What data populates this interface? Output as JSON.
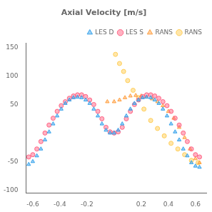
{
  "chart_data": {
    "type": "scatter",
    "title": "Axial Velocity [m/s]",
    "series": [
      {
        "name": "LES D",
        "marker": "triangle",
        "x": [
          -0.63,
          -0.6,
          -0.57,
          -0.54,
          -0.51,
          -0.48,
          -0.45,
          -0.42,
          -0.39,
          -0.36,
          -0.33,
          -0.3,
          -0.27,
          -0.24,
          -0.21,
          -0.18,
          -0.15,
          -0.12,
          -0.09,
          -0.06,
          -0.03,
          0.0,
          0.03,
          0.06,
          0.09,
          0.12,
          0.15,
          0.18,
          0.21,
          0.24,
          0.27,
          0.3,
          0.33,
          0.36,
          0.39,
          0.42,
          0.45,
          0.48,
          0.51,
          0.54,
          0.57,
          0.6,
          0.63
        ],
        "values": [
          -55,
          -50,
          -40,
          -28,
          -12,
          2,
          16,
          30,
          42,
          52,
          58,
          62,
          63,
          62,
          58,
          52,
          42,
          30,
          16,
          5,
          0,
          0,
          5,
          16,
          30,
          42,
          52,
          58,
          62,
          63,
          62,
          58,
          52,
          42,
          30,
          16,
          2,
          -12,
          -28,
          -40,
          -52,
          -58,
          -60
        ]
      },
      {
        "name": "LES S",
        "marker": "circle",
        "x": [
          -0.63,
          -0.6,
          -0.57,
          -0.54,
          -0.51,
          -0.48,
          -0.45,
          -0.42,
          -0.39,
          -0.36,
          -0.33,
          -0.3,
          -0.27,
          -0.24,
          -0.21,
          -0.18,
          -0.15,
          -0.12,
          -0.09,
          -0.06,
          -0.03,
          0.0,
          0.03,
          0.06,
          0.09,
          0.12,
          0.15,
          0.18,
          0.21,
          0.24,
          0.27,
          0.3,
          0.33,
          0.36,
          0.39,
          0.42,
          0.45,
          0.48,
          0.51,
          0.54,
          0.57,
          0.6,
          0.63
        ],
        "values": [
          -42,
          -38,
          -28,
          -15,
          0,
          14,
          26,
          38,
          48,
          55,
          61,
          65,
          67,
          67,
          64,
          58,
          50,
          38,
          25,
          10,
          2,
          0,
          2,
          10,
          25,
          38,
          50,
          58,
          64,
          67,
          67,
          65,
          61,
          55,
          48,
          38,
          26,
          14,
          0,
          -15,
          -28,
          -38,
          -42
        ]
      },
      {
        "name": "RANS",
        "marker": "triangle",
        "x": [
          -0.05,
          0.0,
          0.04,
          0.08,
          0.12,
          0.16,
          0.2,
          0.24,
          0.28,
          0.32,
          0.36,
          0.4,
          0.44,
          0.48,
          0.52,
          0.56,
          0.6,
          0.63
        ],
        "values": [
          55,
          55,
          58,
          62,
          65,
          66,
          65,
          63,
          60,
          55,
          48,
          38,
          26,
          10,
          -8,
          -28,
          -45,
          -52
        ]
      },
      {
        "name": "RANS",
        "marker": "circle",
        "x": [
          0.01,
          0.04,
          0.07,
          0.1,
          0.14,
          0.18,
          0.22,
          0.27,
          0.32,
          0.37,
          0.42,
          0.47,
          0.52,
          0.57,
          0.62
        ],
        "values": [
          138,
          122,
          108,
          92,
          75,
          62,
          42,
          22,
          8,
          -5,
          -18,
          -28,
          -38,
          -48,
          -52
        ]
      }
    ],
    "xlim": [
      -0.65,
      0.68
    ],
    "ylim": [
      -105,
      158
    ],
    "xticks": [
      -0.6,
      -0.4,
      -0.2,
      {
        "value": 0,
        "label": null
      },
      0.2,
      0.4,
      0.6
    ],
    "yticks": [
      -100,
      -50,
      {
        "value": 0,
        "label": null
      },
      50,
      100,
      150
    ],
    "grid": false,
    "legend": "upper right"
  }
}
